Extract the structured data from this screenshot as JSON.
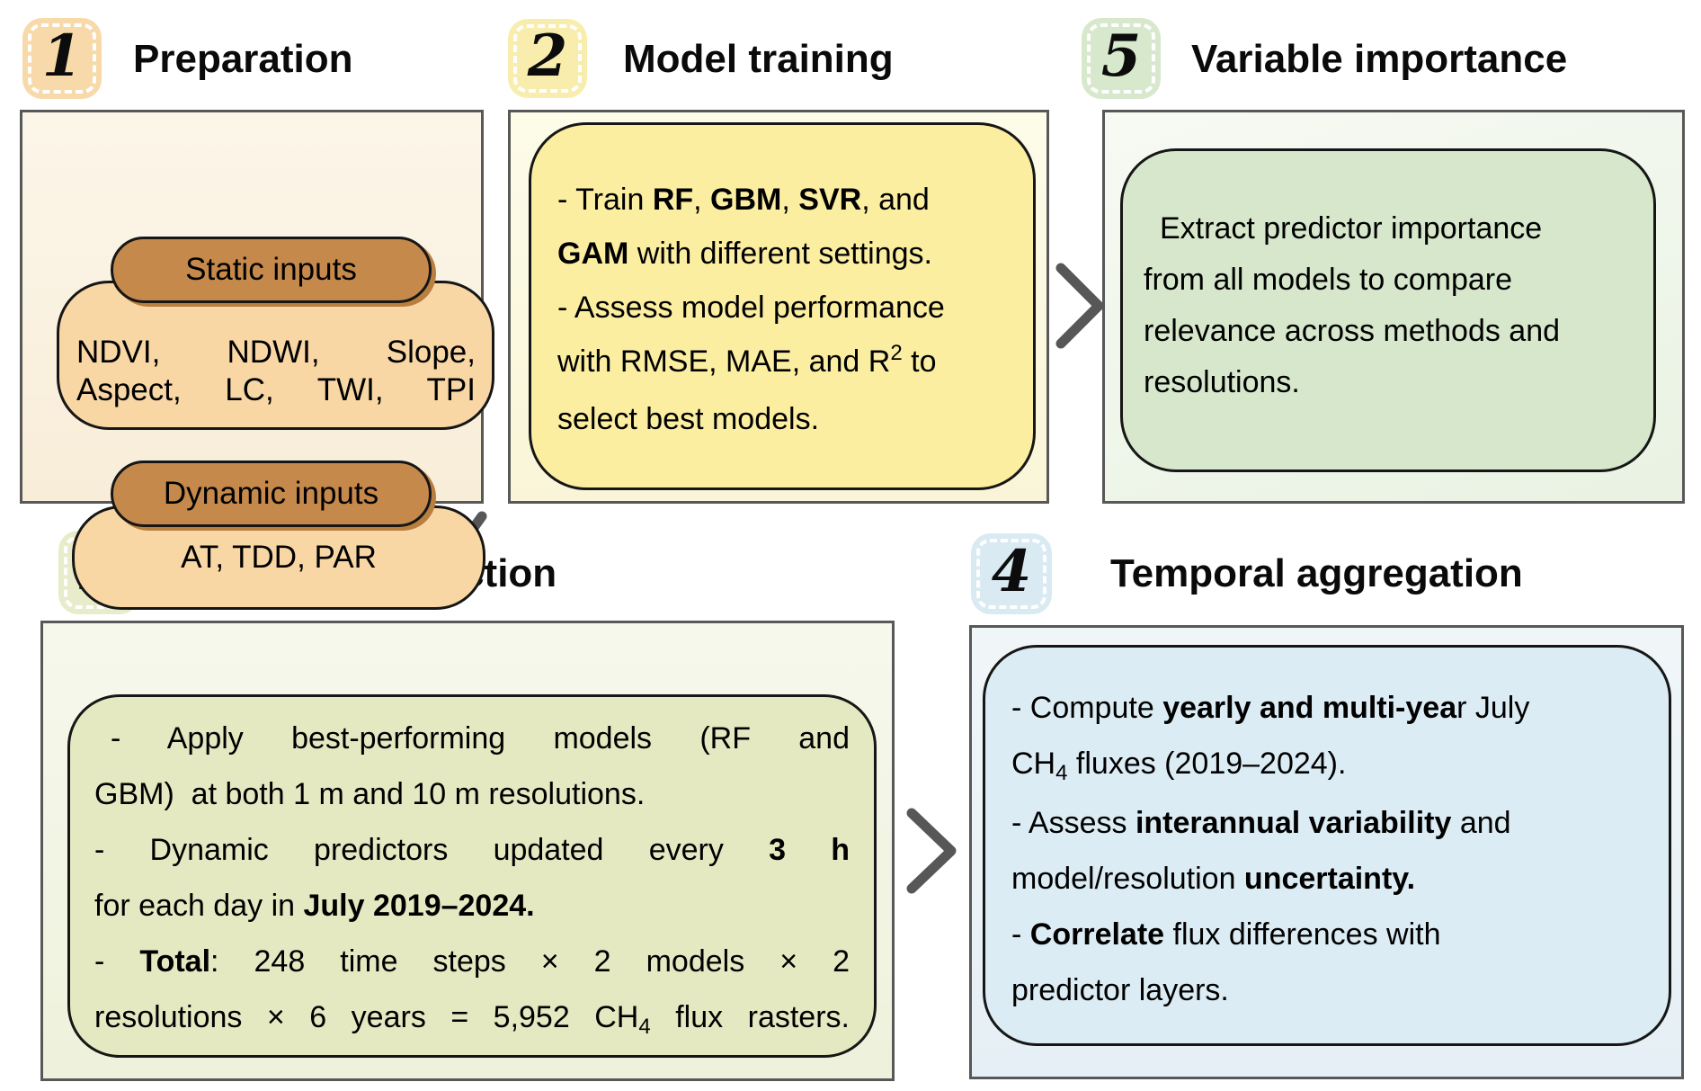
{
  "palette": {
    "s1-badge": "#f8d9a9",
    "s1-panel-top": "#fcf6e9",
    "s1-panel-bot": "#f8edd8",
    "s1-pill": "#c6894c",
    "s1-pill-shadow": "#b97f3e",
    "s1-rect": "#f8d7a5",
    "s2-badge": "#f9edae",
    "s2-panel-top": "#fdfce9",
    "s2-panel-bot": "#faf5d8",
    "s2-rect": "#fbeea1",
    "s5-badge": "#d8e8cd",
    "s5-panel-top": "#f7faf3",
    "s5-panel-bot": "#e9f2e3",
    "s5-rect": "#d6e7cb",
    "s3-badge": "#e9ecca",
    "s3-panel-top": "#f6f8ec",
    "s3-panel-bot": "#eef2dc",
    "s3-rect": "#e4e9c2",
    "s4-badge": "#d9eaf2",
    "s4-panel-top": "#f0f6f8",
    "s4-panel-bot": "#e5eff5",
    "s4-rect": "#dcecf4",
    "arrow": "#575757",
    "ink": "#000000"
  },
  "steps": {
    "s1": {
      "num": "1",
      "title": "Preparation",
      "static_label": "Static inputs",
      "static_lines": [
        {
          "j": true,
          "seg": [
            {
              "t": "NDVI, NDWI, Slope,"
            }
          ]
        },
        {
          "j": true,
          "seg": [
            {
              "t": "Aspect, LC, TWI, TPI"
            }
          ]
        }
      ],
      "dynamic_label": "Dynamic inputs",
      "dynamic_text": "AT, TDD, PAR"
    },
    "s2": {
      "num": "2",
      "title": "Model training",
      "lines": [
        {
          "seg": [
            {
              "t": "- Train "
            },
            {
              "t": "RF",
              "b": true
            },
            {
              "t": ", "
            },
            {
              "t": "GBM",
              "b": true
            },
            {
              "t": ", "
            },
            {
              "t": "SVR",
              "b": true
            },
            {
              "t": ", and"
            }
          ]
        },
        {
          "seg": [
            {
              "t": "GAM",
              "b": true
            },
            {
              "t": " with different settings."
            }
          ]
        },
        {
          "seg": [
            {
              "t": "- Assess model performance"
            }
          ]
        },
        {
          "seg": [
            {
              "t": "with RMSE, MAE, and R"
            },
            {
              "t": "2",
              "sup": true
            },
            {
              "t": " to"
            }
          ]
        },
        {
          "seg": [
            {
              "t": "select best models."
            }
          ]
        }
      ]
    },
    "s5": {
      "num": "5",
      "title": "Variable importance",
      "lines": [
        {
          "ind": true,
          "seg": [
            {
              "t": "Extract predictor importance"
            }
          ]
        },
        {
          "seg": [
            {
              "t": "from all models to compare"
            }
          ]
        },
        {
          "seg": [
            {
              "t": "relevance across methods and"
            }
          ]
        },
        {
          "seg": [
            {
              "t": "resolutions."
            }
          ]
        }
      ]
    },
    "s3": {
      "num": "3",
      "title": "Spatial prediction",
      "lines": [
        {
          "j": true,
          "ind": true,
          "seg": [
            {
              "t": "- Apply best-performing models (RF and"
            }
          ]
        },
        {
          "seg": [
            {
              "t": "GBM)  at both 1 m and 10 m resolutions."
            }
          ]
        },
        {
          "j": true,
          "seg": [
            {
              "t": "- Dynamic predictors updated every "
            },
            {
              "t": "3 h",
              "b": true
            }
          ]
        },
        {
          "seg": [
            {
              "t": "for each day in "
            },
            {
              "t": "July 2019–2024.",
              "b": true
            }
          ]
        },
        {
          "j": true,
          "seg": [
            {
              "t": "- "
            },
            {
              "t": "Total",
              "b": true
            },
            {
              "t": ": 248 time steps × 2 models × 2"
            }
          ]
        },
        {
          "j": true,
          "seg": [
            {
              "t": "resolutions × 6 years = 5,952 CH"
            },
            {
              "t": "4",
              "sub": true
            },
            {
              "t": " flux rasters."
            }
          ]
        }
      ]
    },
    "s4": {
      "num": "4",
      "title": "Temporal aggregation",
      "lines": [
        {
          "seg": [
            {
              "t": "- Compute "
            },
            {
              "t": "yearly and multi-yea",
              "b": true
            },
            {
              "t": "r July"
            }
          ]
        },
        {
          "seg": [
            {
              "t": "CH"
            },
            {
              "t": "4",
              "sub": true
            },
            {
              "t": " fluxes (2019–2024)."
            }
          ]
        },
        {
          "seg": [
            {
              "t": "- Assess "
            },
            {
              "t": "interannual variability",
              "b": true
            },
            {
              "t": " and"
            }
          ]
        },
        {
          "seg": [
            {
              "t": "model/resolution "
            },
            {
              "t": "uncertainty.",
              "b": true
            }
          ]
        },
        {
          "seg": [
            {
              "t": "- "
            },
            {
              "t": "Correlate",
              "b": true
            },
            {
              "t": " flux differences with"
            }
          ]
        },
        {
          "seg": [
            {
              "t": "predictor layers."
            }
          ]
        }
      ]
    }
  }
}
